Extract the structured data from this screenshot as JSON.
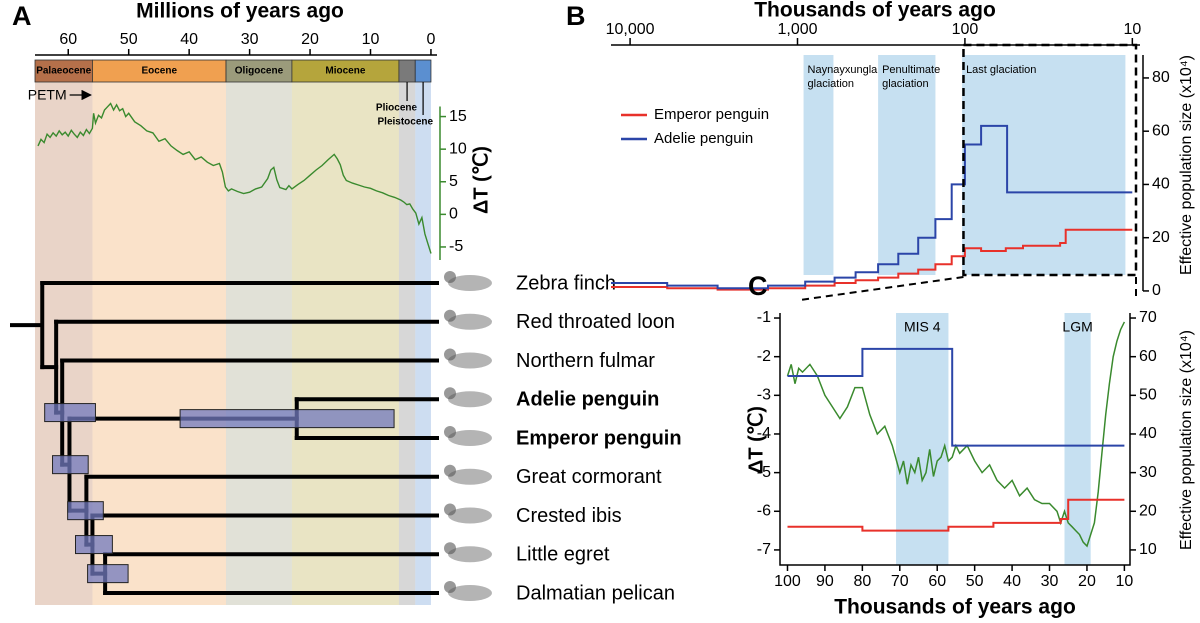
{
  "chart_data": [
    {
      "type": "line",
      "panel": "A",
      "xlabel": "Millions of years ago",
      "xlim": [
        65.5,
        -1
      ],
      "xticks": [
        60,
        50,
        40,
        30,
        20,
        10,
        0
      ],
      "ylabel": "ΔT (℃)",
      "ylim": [
        -7,
        18
      ],
      "yticks": [
        -5,
        0,
        5,
        10,
        15
      ],
      "color": "#3a8a2e",
      "epochs": [
        {
          "name": "Palaeocene",
          "start": 66,
          "end": 56,
          "color": "#b5704a"
        },
        {
          "name": "Eocene",
          "start": 56,
          "end": 33.9,
          "color": "#f0a050"
        },
        {
          "name": "Oligocene",
          "start": 33.9,
          "end": 23,
          "color": "#9b9b7b"
        },
        {
          "name": "Miocene",
          "start": 23,
          "end": 5.3,
          "color": "#b5a53c"
        },
        {
          "name": "Pliocene",
          "start": 5.3,
          "end": 2.6,
          "color": "#7a7a7a"
        },
        {
          "name": "Pleistocene",
          "start": 2.6,
          "end": 0,
          "color": "#5b8fd0"
        }
      ],
      "annotation": {
        "text": "PETM",
        "age": 55.8
      },
      "x": [
        65,
        64.5,
        64,
        63.5,
        63,
        62.5,
        62,
        61.5,
        61,
        60.5,
        60,
        59.5,
        59,
        58.5,
        58,
        57.5,
        57,
        56.5,
        56,
        55.8,
        55.5,
        55,
        54.5,
        54,
        53.5,
        53,
        52.5,
        52,
        51.5,
        51,
        50.5,
        50,
        49,
        48,
        47,
        46,
        45,
        44,
        43,
        42,
        41,
        40,
        39,
        38,
        37,
        36,
        35,
        34.5,
        34,
        33.5,
        33,
        32,
        31,
        30,
        29,
        28,
        27,
        26.5,
        26,
        25.5,
        25,
        24,
        23.5,
        23,
        22,
        21,
        20,
        19,
        18,
        17,
        16,
        15.5,
        15,
        14.5,
        14,
        13,
        12,
        11,
        10,
        9,
        8,
        7,
        6,
        5,
        4.5,
        4,
        3.5,
        3,
        2.5,
        2,
        1.5,
        1,
        0.5,
        0
      ],
      "values": [
        10.5,
        11.5,
        11,
        12.3,
        11.8,
        12.5,
        12,
        12.8,
        12.2,
        12.6,
        12,
        12.9,
        12.3,
        11.8,
        12.6,
        12.1,
        13,
        12.4,
        13.2,
        15.5,
        14,
        15.2,
        14.8,
        16,
        16.5,
        17,
        16,
        16.8,
        15.9,
        16.2,
        15,
        15.5,
        14.2,
        13.6,
        12.8,
        12.5,
        11.2,
        11.6,
        10.5,
        9.8,
        9.2,
        9.6,
        8.4,
        8.8,
        8,
        7.5,
        7.8,
        6.5,
        4.2,
        3.6,
        3.9,
        3.5,
        3.2,
        3.4,
        3.9,
        4.2,
        5.5,
        6.8,
        7.2,
        5.3,
        4.1,
        3.8,
        4.4,
        3.9,
        4.6,
        5.2,
        6,
        6.8,
        7.5,
        8.4,
        9.2,
        8.5,
        7.6,
        6,
        5.2,
        4.8,
        4.5,
        4.2,
        4.0,
        3.6,
        3.3,
        2.9,
        2.6,
        2.2,
        1.9,
        1.5,
        1.6,
        0.8,
        0.2,
        -1.5,
        -0.5,
        -3,
        -4.5,
        -6
      ]
    },
    {
      "type": "tree",
      "ci_color": "#7179bd",
      "tree": {
        "age": 64.3,
        "children": [
          {
            "name": "Zebra finch",
            "color": "#000000",
            "bold": false
          },
          {
            "age": 62,
            "children": [
              {
                "name": "Red throated loon",
                "color": "#7f9ccc",
                "bold": false
              },
              {
                "age": 61,
                "ci": [
                  63.9,
                  55.5
                ],
                "children": [
                  {
                    "name": "Northern fulmar",
                    "color": "#7f9ccc",
                    "bold": false
                  },
                  {
                    "age": 59.8,
                    "ci": [
                      62.6,
                      56.7
                    ],
                    "children": [
                      {
                        "age": 22.2,
                        "ci": [
                          41.5,
                          6.1
                        ],
                        "children": [
                          {
                            "name": "Adelie penguin",
                            "color": "#2d3f6e",
                            "bold": true
                          },
                          {
                            "name": "Emperor penguin",
                            "color": "#2d3f6e",
                            "bold": true
                          }
                        ]
                      },
                      {
                        "age": 57,
                        "ci": [
                          60.1,
                          54.2
                        ],
                        "children": [
                          {
                            "name": "Great cormorant",
                            "color": "#7f9ccc",
                            "bold": false
                          },
                          {
                            "age": 56,
                            "ci": [
                              58.8,
                              52.7
                            ],
                            "children": [
                              {
                                "name": "Crested ibis",
                                "color": "#7f9ccc",
                                "bold": false
                              },
                              {
                                "age": 53.9,
                                "ci": [
                                  56.8,
                                  50.1
                                ],
                                "children": [
                                  {
                                    "name": "Little egret",
                                    "color": "#7f9ccc",
                                    "bold": false
                                  },
                                  {
                                    "name": "Dalmatian pelican",
                                    "color": "#7f9ccc",
                                    "bold": false
                                  }
                                ]
                              }
                            ]
                          }
                        ]
                      }
                    ]
                  }
                ]
              }
            ]
          }
        ]
      }
    },
    {
      "type": "line",
      "panel": "B",
      "xlabel": "Thousands of years ago",
      "xscale": "log",
      "xlim": [
        13000,
        9
      ],
      "xticks": [
        {
          "value": 10000,
          "label": "10,000"
        },
        {
          "value": 1000,
          "label": "1,000"
        },
        100,
        10
      ],
      "ylabel": "Effective population size (x10⁴)",
      "ylim": [
        -3.4,
        93.5
      ],
      "yticks": [
        0,
        20,
        40,
        60,
        80
      ],
      "legend": "upper left",
      "shaded": [
        {
          "label": [
            "Naynayxungla",
            "glaciation"
          ],
          "start": 920,
          "end": 610
        },
        {
          "label": [
            "Penultimate",
            "glaciation"
          ],
          "start": 330,
          "end": 150
        },
        {
          "label": [
            "Last glaciation"
          ],
          "start": 104,
          "end": 11
        }
      ],
      "series": [
        {
          "name": "Emperor penguin",
          "color": "#e8312a",
          "x": [
            13000,
            6000,
            6000,
            3000,
            3000,
            1500,
            1500,
            900,
            900,
            600,
            600,
            450,
            450,
            330,
            330,
            250,
            250,
            190,
            190,
            150,
            150,
            120,
            120,
            100,
            100,
            80,
            80,
            57,
            57,
            45,
            45,
            27,
            27,
            25,
            25,
            10
          ],
          "values": [
            1.5,
            1.5,
            1,
            1,
            0.5,
            0.5,
            1,
            1,
            2,
            2,
            3,
            3,
            4,
            4,
            5,
            5,
            6.5,
            6.5,
            8,
            8,
            10,
            10,
            13,
            13,
            16,
            16,
            15,
            15,
            16,
            16,
            17,
            17,
            18,
            18,
            23,
            23
          ]
        },
        {
          "name": "Adelie penguin",
          "color": "#2b45a8",
          "x": [
            13000,
            6000,
            6000,
            3000,
            3000,
            1500,
            1500,
            900,
            900,
            600,
            600,
            450,
            450,
            330,
            330,
            250,
            250,
            190,
            190,
            150,
            150,
            120,
            120,
            100,
            100,
            80,
            80,
            56,
            56,
            10
          ],
          "values": [
            3,
            3,
            2,
            2,
            1,
            1,
            2,
            2,
            3.5,
            3.5,
            5,
            5,
            7,
            7,
            10,
            10,
            14,
            14,
            20,
            20,
            27,
            27,
            40,
            40,
            55,
            55,
            62,
            62,
            37,
            37
          ]
        }
      ]
    },
    {
      "type": "line",
      "panel": "C",
      "xlabel": "Thousands of years ago",
      "xlim": [
        102,
        8.5
      ],
      "xticks": [
        100,
        90,
        80,
        70,
        60,
        50,
        40,
        30,
        20,
        10
      ],
      "ylabel": "ΔT (℃)",
      "ylim": [
        -7.39,
        -0.87
      ],
      "yticks": [
        -1,
        -2,
        -3,
        -4,
        -5,
        -6,
        -7
      ],
      "y2label": "Effective population size (x10⁴)",
      "y2lim": [
        6.1,
        71.3
      ],
      "y2ticks": [
        10,
        20,
        30,
        40,
        50,
        60,
        70
      ],
      "shaded": [
        {
          "label": "MIS 4",
          "start": 71,
          "end": 57
        },
        {
          "label": "LGM",
          "start": 26,
          "end": 19
        }
      ],
      "series": [
        {
          "color": "#3a8a2e",
          "x": [
            100,
            99,
            98,
            97,
            96,
            94,
            92,
            90,
            88,
            86,
            84,
            82,
            80,
            78,
            76,
            74,
            72,
            70,
            69,
            68,
            67,
            66,
            65,
            64,
            63,
            62,
            61,
            60,
            59,
            58,
            57,
            56,
            55,
            54,
            52,
            50,
            48,
            46,
            44,
            42,
            40,
            38,
            36,
            34,
            32,
            30,
            28,
            27,
            26,
            25,
            24,
            23,
            22,
            21,
            20,
            19,
            18,
            17,
            16,
            15,
            14,
            13,
            12,
            11,
            10
          ],
          "values": [
            -2.5,
            -2.2,
            -2.7,
            -2.3,
            -2.4,
            -2.2,
            -2.5,
            -3.0,
            -3.3,
            -3.6,
            -3.3,
            -2.8,
            -2.8,
            -3.5,
            -4.0,
            -3.8,
            -4.3,
            -5.0,
            -4.7,
            -5.3,
            -4.8,
            -5.0,
            -4.6,
            -5.2,
            -5.0,
            -4.4,
            -5.1,
            -4.7,
            -4.6,
            -4.3,
            -4.7,
            -4.6,
            -4.3,
            -4.5,
            -4.3,
            -4.7,
            -5.0,
            -4.8,
            -5.2,
            -5.4,
            -5.2,
            -5.6,
            -5.4,
            -5.7,
            -5.8,
            -5.8,
            -6.0,
            -6.3,
            -6.0,
            -6.3,
            -6.4,
            -6.5,
            -6.6,
            -6.8,
            -6.9,
            -6.6,
            -6.3,
            -5.5,
            -4.5,
            -3.5,
            -2.7,
            -2.0,
            -1.6,
            -1.3,
            -1.1
          ]
        },
        {
          "color": "#2b45a8",
          "axis": "y2",
          "x": [
            100,
            80,
            80,
            56,
            56,
            10
          ],
          "values": [
            55,
            55,
            62,
            62,
            37,
            37
          ]
        },
        {
          "color": "#e8312a",
          "axis": "y2",
          "x": [
            100,
            80,
            80,
            57,
            57,
            45,
            45,
            27,
            27,
            25,
            25,
            10
          ],
          "values": [
            16,
            16,
            15,
            15,
            16,
            16,
            17,
            17,
            18,
            18,
            23,
            23
          ]
        }
      ]
    }
  ]
}
